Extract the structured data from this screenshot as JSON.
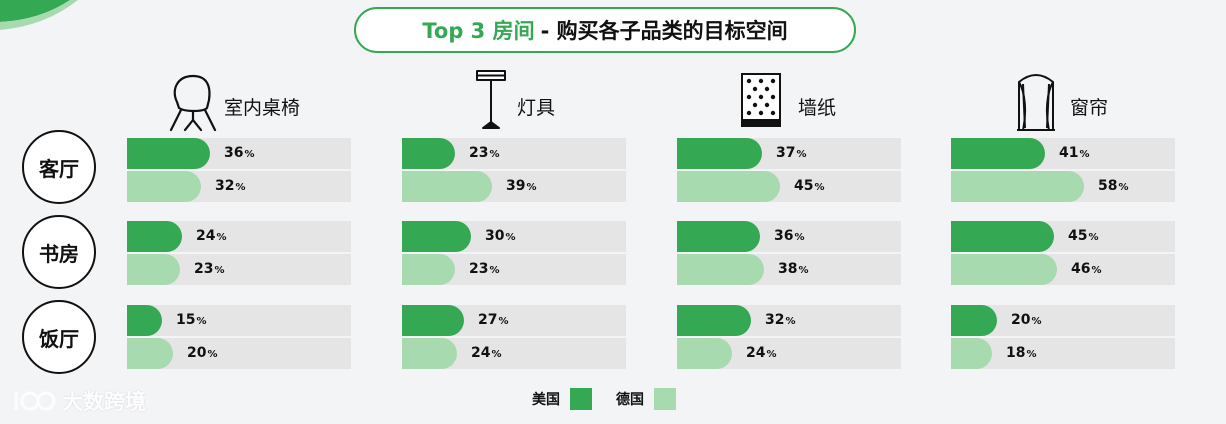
{
  "title": {
    "accent": "Top 3 房间",
    "rest": "- 购买各子品类的目标空间"
  },
  "colors": {
    "us": "#34a853",
    "de": "#a8dab0",
    "track": "#e5e5e6"
  },
  "legend": {
    "us_label": "美国",
    "de_label": "德国"
  },
  "watermark": {
    "logo_text": "大数跨境"
  },
  "chart_data": {
    "type": "bar",
    "title": "Top 3 房间 - 购买各子品类的目标空间",
    "unit": "%",
    "xlim": [
      0,
      100
    ],
    "categories": [
      "室内桌椅",
      "灯具",
      "墙纸",
      "窗帘"
    ],
    "rooms": [
      "客厅",
      "书房",
      "饭厅"
    ],
    "series": [
      {
        "name": "美国",
        "values": {
          "室内桌椅": [
            36,
            24,
            15
          ],
          "灯具": [
            23,
            30,
            27
          ],
          "墙纸": [
            37,
            36,
            32
          ],
          "窗帘": [
            41,
            45,
            20
          ]
        }
      },
      {
        "name": "德国",
        "values": {
          "室内桌椅": [
            32,
            23,
            20
          ],
          "灯具": [
            39,
            23,
            24
          ],
          "墙纸": [
            45,
            38,
            24
          ],
          "窗帘": [
            58,
            46,
            18
          ]
        }
      }
    ],
    "legend_position": "bottom-center"
  }
}
